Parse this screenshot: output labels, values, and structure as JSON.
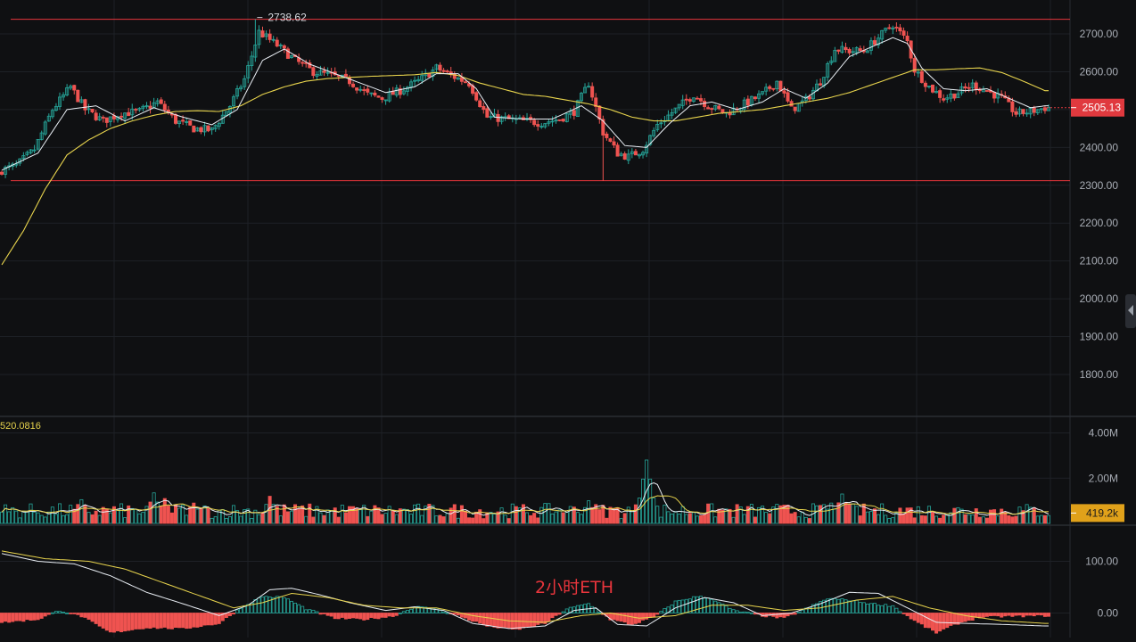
{
  "chart_data": {
    "type": "candlestick",
    "title": "",
    "overlay_caption": "2小时ETH",
    "colors": {
      "up": "#26a69a",
      "down": "#ef5350",
      "ma_fast": "#e9eef4",
      "ma_slow": "#e8d44d",
      "hline": "#e8353c",
      "grid": "#1e2126",
      "axis_text": "#a8adb5",
      "current_price_bg": "#e0393e",
      "volume_label_bg": "#e0a11a"
    },
    "price_panel": {
      "ylim": [
        1700,
        2750
      ],
      "y_ticks": [
        "2700.00",
        "2600.00",
        "2500.00",
        "2400.00",
        "2300.00",
        "2200.00",
        "2100.00",
        "2000.00",
        "1900.00",
        "1800.00"
      ],
      "y_tick_values": [
        2700,
        2600,
        2500,
        2400,
        2300,
        2200,
        2100,
        2000,
        1900,
        1800
      ],
      "current_price": 2505.13,
      "current_price_label": "2505.13",
      "high_marker": {
        "index": 70,
        "value": 2738.62,
        "label": "2738.62"
      },
      "horizontal_lines": [
        2738.62,
        2312
      ],
      "close_path": [
        [
          0,
          2340
        ],
        [
          4,
          2352
        ],
        [
          9,
          2395
        ],
        [
          14,
          2500
        ],
        [
          19,
          2560
        ],
        [
          23,
          2500
        ],
        [
          28,
          2470
        ],
        [
          33,
          2490
        ],
        [
          38,
          2495
        ],
        [
          43,
          2520
        ],
        [
          48,
          2470
        ],
        [
          53,
          2450
        ],
        [
          58,
          2445
        ],
        [
          63,
          2510
        ],
        [
          67,
          2580
        ],
        [
          71,
          2705
        ],
        [
          76,
          2670
        ],
        [
          81,
          2630
        ],
        [
          86,
          2600
        ],
        [
          91,
          2590
        ],
        [
          96,
          2575
        ],
        [
          101,
          2540
        ],
        [
          105,
          2530
        ],
        [
          110,
          2550
        ],
        [
          115,
          2575
        ],
        [
          120,
          2610
        ],
        [
          124,
          2590
        ],
        [
          129,
          2570
        ],
        [
          134,
          2480
        ],
        [
          139,
          2475
        ],
        [
          144,
          2470
        ],
        [
          149,
          2465
        ],
        [
          154,
          2475
        ],
        [
          158,
          2495
        ],
        [
          162,
          2570
        ],
        [
          166,
          2440
        ],
        [
          170,
          2385
        ],
        [
          173,
          2375
        ],
        [
          177,
          2395
        ],
        [
          181,
          2460
        ],
        [
          186,
          2500
        ],
        [
          191,
          2540
        ],
        [
          195,
          2510
        ],
        [
          200,
          2490
        ],
        [
          205,
          2515
        ],
        [
          210,
          2540
        ],
        [
          214,
          2575
        ],
        [
          218,
          2500
        ],
        [
          222,
          2525
        ],
        [
          226,
          2575
        ],
        [
          230,
          2660
        ],
        [
          234,
          2655
        ],
        [
          238,
          2655
        ],
        [
          242,
          2690
        ],
        [
          246,
          2725
        ],
        [
          250,
          2680
        ],
        [
          252,
          2605
        ],
        [
          256,
          2560
        ],
        [
          260,
          2530
        ],
        [
          264,
          2545
        ],
        [
          268,
          2565
        ],
        [
          272,
          2550
        ],
        [
          276,
          2530
        ],
        [
          280,
          2490
        ],
        [
          284,
          2495
        ],
        [
          288,
          2505
        ]
      ],
      "ma_fast_path": [
        [
          0,
          2340
        ],
        [
          10,
          2385
        ],
        [
          18,
          2500
        ],
        [
          26,
          2510
        ],
        [
          34,
          2470
        ],
        [
          42,
          2505
        ],
        [
          50,
          2480
        ],
        [
          58,
          2460
        ],
        [
          65,
          2500
        ],
        [
          72,
          2630
        ],
        [
          78,
          2660
        ],
        [
          85,
          2620
        ],
        [
          92,
          2595
        ],
        [
          99,
          2570
        ],
        [
          106,
          2545
        ],
        [
          114,
          2560
        ],
        [
          120,
          2595
        ],
        [
          126,
          2595
        ],
        [
          131,
          2555
        ],
        [
          136,
          2480
        ],
        [
          144,
          2475
        ],
        [
          152,
          2475
        ],
        [
          160,
          2510
        ],
        [
          166,
          2470
        ],
        [
          172,
          2405
        ],
        [
          178,
          2400
        ],
        [
          184,
          2460
        ],
        [
          190,
          2510
        ],
        [
          196,
          2520
        ],
        [
          203,
          2500
        ],
        [
          210,
          2520
        ],
        [
          216,
          2555
        ],
        [
          222,
          2530
        ],
        [
          228,
          2570
        ],
        [
          234,
          2640
        ],
        [
          240,
          2665
        ],
        [
          246,
          2690
        ],
        [
          250,
          2675
        ],
        [
          254,
          2610
        ],
        [
          260,
          2555
        ],
        [
          266,
          2550
        ],
        [
          272,
          2555
        ],
        [
          278,
          2530
        ],
        [
          284,
          2505
        ],
        [
          288,
          2510
        ]
      ],
      "ma_slow_path": [
        [
          0,
          2090
        ],
        [
          6,
          2180
        ],
        [
          12,
          2290
        ],
        [
          18,
          2380
        ],
        [
          24,
          2420
        ],
        [
          30,
          2450
        ],
        [
          36,
          2470
        ],
        [
          42,
          2485
        ],
        [
          48,
          2495
        ],
        [
          54,
          2497
        ],
        [
          60,
          2495
        ],
        [
          66,
          2510
        ],
        [
          72,
          2540
        ],
        [
          78,
          2560
        ],
        [
          84,
          2575
        ],
        [
          90,
          2582
        ],
        [
          96,
          2585
        ],
        [
          102,
          2588
        ],
        [
          108,
          2590
        ],
        [
          114,
          2592
        ],
        [
          120,
          2598
        ],
        [
          126,
          2590
        ],
        [
          132,
          2570
        ],
        [
          138,
          2555
        ],
        [
          144,
          2540
        ],
        [
          150,
          2535
        ],
        [
          156,
          2525
        ],
        [
          162,
          2515
        ],
        [
          168,
          2500
        ],
        [
          174,
          2480
        ],
        [
          180,
          2470
        ],
        [
          186,
          2470
        ],
        [
          192,
          2480
        ],
        [
          198,
          2490
        ],
        [
          204,
          2495
        ],
        [
          210,
          2500
        ],
        [
          216,
          2510
        ],
        [
          222,
          2520
        ],
        [
          228,
          2530
        ],
        [
          234,
          2545
        ],
        [
          240,
          2565
        ],
        [
          246,
          2585
        ],
        [
          252,
          2605
        ],
        [
          258,
          2605
        ],
        [
          264,
          2608
        ],
        [
          270,
          2610
        ],
        [
          276,
          2598
        ],
        [
          282,
          2575
        ],
        [
          288,
          2550
        ]
      ]
    },
    "volume_panel": {
      "ylim": [
        0,
        4500000
      ],
      "y_ticks": [
        "4.00M",
        "2.00M"
      ],
      "y_tick_values": [
        4000000,
        2000000
      ],
      "ma_label": "520.0816",
      "current_volume_label": "419.2k",
      "current_volume": 419200,
      "base_volume": 420000,
      "spikes": [
        [
          162,
          1000000
        ],
        [
          178,
          2800000
        ],
        [
          157,
          700000
        ],
        [
          229,
          900000
        ],
        [
          232,
          1300000
        ],
        [
          151,
          600000
        ],
        [
          42,
          1350000
        ],
        [
          45,
          1100000
        ],
        [
          22,
          1050000
        ],
        [
          74,
          1200000
        ],
        [
          53,
          900000
        ]
      ]
    },
    "macd_panel": {
      "ylim": [
        -40,
        140
      ],
      "y_ticks": [
        "100.00",
        "0.00"
      ],
      "y_tick_values": [
        100,
        0
      ],
      "histogram_path": [
        [
          0,
          -18
        ],
        [
          10,
          -12
        ],
        [
          16,
          5
        ],
        [
          22,
          -6
        ],
        [
          30,
          -38
        ],
        [
          40,
          -28
        ],
        [
          50,
          -30
        ],
        [
          60,
          -20
        ],
        [
          66,
          10
        ],
        [
          72,
          32
        ],
        [
          78,
          30
        ],
        [
          84,
          8
        ],
        [
          92,
          -10
        ],
        [
          100,
          -12
        ],
        [
          108,
          -6
        ],
        [
          114,
          12
        ],
        [
          120,
          8
        ],
        [
          126,
          -5
        ],
        [
          134,
          -25
        ],
        [
          142,
          -32
        ],
        [
          150,
          -20
        ],
        [
          156,
          8
        ],
        [
          162,
          18
        ],
        [
          168,
          -12
        ],
        [
          174,
          -22
        ],
        [
          180,
          -8
        ],
        [
          186,
          22
        ],
        [
          192,
          32
        ],
        [
          196,
          28
        ],
        [
          202,
          5
        ],
        [
          210,
          -5
        ],
        [
          216,
          -10
        ],
        [
          222,
          8
        ],
        [
          228,
          28
        ],
        [
          234,
          25
        ],
        [
          240,
          18
        ],
        [
          246,
          14
        ],
        [
          252,
          -15
        ],
        [
          258,
          -38
        ],
        [
          264,
          -20
        ],
        [
          270,
          -8
        ],
        [
          278,
          -6
        ],
        [
          288,
          -5
        ]
      ],
      "dif_path": [
        [
          0,
          115
        ],
        [
          10,
          100
        ],
        [
          20,
          95
        ],
        [
          30,
          72
        ],
        [
          40,
          40
        ],
        [
          50,
          18
        ],
        [
          60,
          -5
        ],
        [
          68,
          15
        ],
        [
          74,
          45
        ],
        [
          80,
          48
        ],
        [
          88,
          35
        ],
        [
          96,
          20
        ],
        [
          106,
          5
        ],
        [
          114,
          12
        ],
        [
          122,
          5
        ],
        [
          130,
          -20
        ],
        [
          140,
          -30
        ],
        [
          150,
          -25
        ],
        [
          158,
          5
        ],
        [
          164,
          10
        ],
        [
          170,
          -22
        ],
        [
          178,
          -25
        ],
        [
          186,
          10
        ],
        [
          194,
          30
        ],
        [
          202,
          20
        ],
        [
          210,
          -5
        ],
        [
          218,
          0
        ],
        [
          226,
          18
        ],
        [
          234,
          40
        ],
        [
          242,
          38
        ],
        [
          250,
          10
        ],
        [
          258,
          -18
        ],
        [
          266,
          -20
        ],
        [
          276,
          -22
        ],
        [
          288,
          -25
        ]
      ],
      "dea_path": [
        [
          0,
          120
        ],
        [
          12,
          105
        ],
        [
          24,
          100
        ],
        [
          34,
          85
        ],
        [
          44,
          60
        ],
        [
          54,
          35
        ],
        [
          64,
          10
        ],
        [
          72,
          20
        ],
        [
          80,
          38
        ],
        [
          90,
          30
        ],
        [
          100,
          15
        ],
        [
          110,
          10
        ],
        [
          120,
          10
        ],
        [
          130,
          -5
        ],
        [
          140,
          -15
        ],
        [
          150,
          -18
        ],
        [
          160,
          -5
        ],
        [
          168,
          0
        ],
        [
          176,
          -10
        ],
        [
          186,
          -5
        ],
        [
          196,
          15
        ],
        [
          206,
          15
        ],
        [
          216,
          5
        ],
        [
          226,
          10
        ],
        [
          236,
          25
        ],
        [
          246,
          32
        ],
        [
          256,
          10
        ],
        [
          266,
          -5
        ],
        [
          276,
          -15
        ],
        [
          288,
          -20
        ]
      ]
    },
    "n_candles": 290
  }
}
